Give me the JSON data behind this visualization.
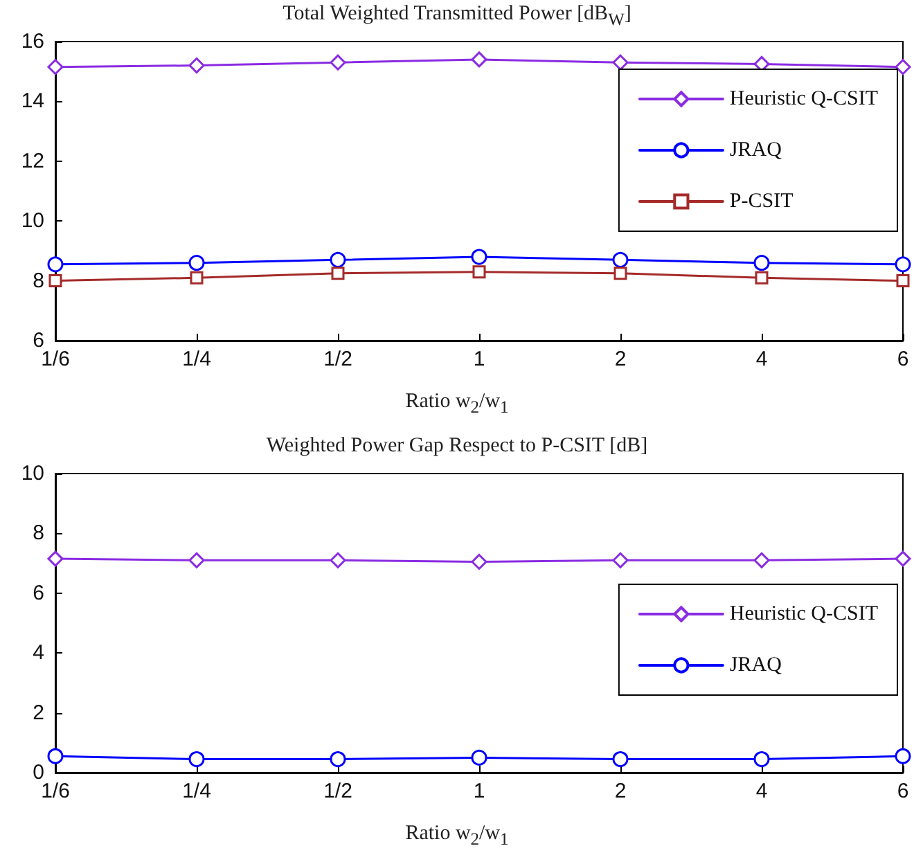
{
  "chart_data": [
    {
      "type": "line",
      "title": "Total Weighted Transmitted Power [dB$_{W}$]",
      "xlabel": "Ratio w$_{2}$/w$_{1}$",
      "categories": [
        "1/6",
        "1/4",
        "1/2",
        "1",
        "2",
        "4",
        "6"
      ],
      "series": [
        {
          "name": "Heuristic Q-CSIT",
          "color": "#8a2be2",
          "marker": "diamond",
          "values": [
            15.15,
            15.2,
            15.3,
            15.4,
            15.3,
            15.25,
            15.15
          ]
        },
        {
          "name": "JRAQ",
          "color": "#0000ff",
          "marker": "circle",
          "values": [
            8.55,
            8.6,
            8.7,
            8.8,
            8.7,
            8.6,
            8.55
          ]
        },
        {
          "name": "P-CSIT",
          "color": "#a52a2a",
          "marker": "square",
          "values": [
            8.0,
            8.1,
            8.25,
            8.3,
            8.25,
            8.1,
            8.0
          ]
        }
      ],
      "ylim": [
        6,
        16
      ],
      "yticks": [
        6,
        8,
        10,
        12,
        14,
        16
      ],
      "grid": false,
      "legend": "top right",
      "line_style": "solid"
    },
    {
      "type": "line",
      "title": "Weighted Power Gap Respect to P-CSIT [dB]",
      "xlabel": "Ratio w$_{2}$/w$_{1}$",
      "categories": [
        "1/6",
        "1/4",
        "1/2",
        "1",
        "2",
        "4",
        "6"
      ],
      "series": [
        {
          "name": "Heuristic Q-CSIT",
          "color": "#8a2be2",
          "marker": "diamond",
          "values": [
            7.15,
            7.1,
            7.1,
            7.05,
            7.1,
            7.1,
            7.15
          ]
        },
        {
          "name": "JRAQ",
          "color": "#0000ff",
          "marker": "circle",
          "values": [
            0.55,
            0.45,
            0.45,
            0.5,
            0.45,
            0.45,
            0.55
          ]
        }
      ],
      "ylim": [
        0,
        10
      ],
      "yticks": [
        0,
        2,
        4,
        6,
        8,
        10
      ],
      "grid": false,
      "legend": "right",
      "line_style": "solid"
    }
  ]
}
